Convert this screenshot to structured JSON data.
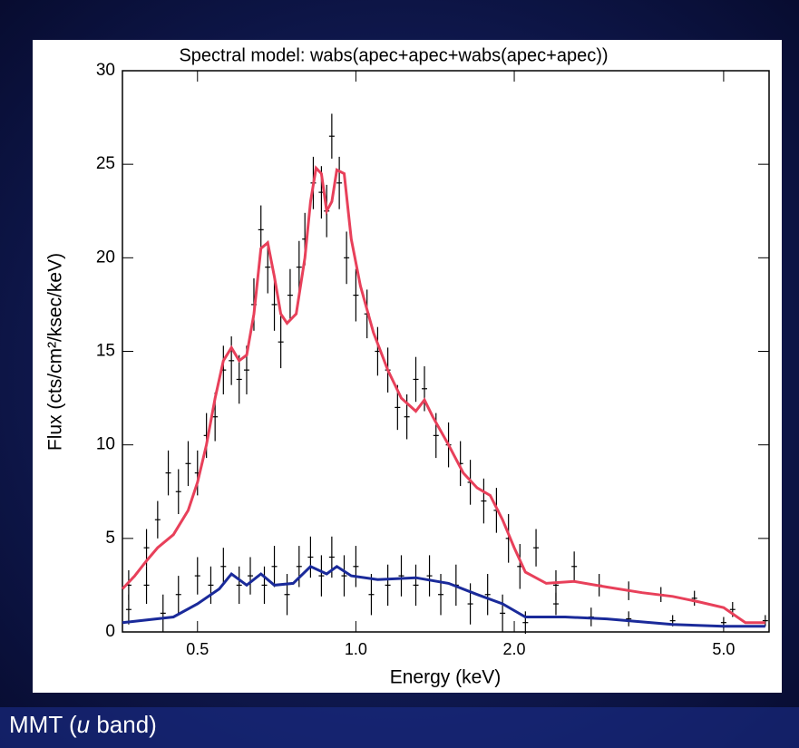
{
  "chart_data": {
    "type": "spectrum",
    "title": "Spectral model: wabs(apec+apec+wabs(apec+apec))",
    "x_label": "Energy (keV)",
    "y_label": "Flux (cts/cm²/ksec/keV)",
    "log_x": true,
    "xlim": [
      0.36,
      6.1
    ],
    "xticks": [
      0.5,
      {
        "value": 1,
        "label": "1.0"
      },
      {
        "value": 2,
        "label": "2.0"
      },
      {
        "value": 5,
        "label": "5.0"
      }
    ],
    "ylim": [
      0,
      30
    ],
    "yticks": [
      0,
      5,
      10,
      15,
      20,
      25,
      30
    ],
    "series": [
      {
        "type": "errorbar",
        "color": "#000000",
        "x": [
          0.37,
          0.4,
          0.42,
          0.44,
          0.46,
          0.48,
          0.5,
          0.52,
          0.54,
          0.56,
          0.58,
          0.6,
          0.62,
          0.64,
          0.66,
          0.68,
          0.7,
          0.72,
          0.75,
          0.78,
          0.8,
          0.83,
          0.86,
          0.88,
          0.9,
          0.93,
          0.96,
          1.0,
          1.05,
          1.1,
          1.15,
          1.2,
          1.25,
          1.3,
          1.35,
          1.42,
          1.5,
          1.58,
          1.65,
          1.75,
          1.85,
          1.95,
          2.05,
          2.2,
          2.4,
          2.6,
          2.9,
          3.3,
          3.8,
          4.4,
          5.2,
          6.0
        ],
        "values": [
          2.5,
          4.5,
          6,
          8.5,
          7.5,
          9,
          8.5,
          10.5,
          11.5,
          14,
          14.5,
          13.5,
          14,
          17.5,
          21.5,
          19.5,
          17.5,
          15.5,
          18,
          19.5,
          21,
          24,
          23.5,
          22.5,
          26.5,
          24,
          20,
          18,
          17,
          15,
          14,
          12,
          11.5,
          13.5,
          13,
          10.5,
          10,
          9,
          8,
          7,
          6.5,
          5,
          3.5,
          4.5,
          2.5,
          3.5,
          2.5,
          2.2,
          2.0,
          1.8,
          1.2,
          0.6
        ],
        "errors": [
          0.8,
          1,
          1,
          1.2,
          1.2,
          1.2,
          1.2,
          1.2,
          1.3,
          1.3,
          1.3,
          1.3,
          1.3,
          1.4,
          1.3,
          1.4,
          1.4,
          1.4,
          1.4,
          1.4,
          1.4,
          1.4,
          1.4,
          1.4,
          1.2,
          1.4,
          1.4,
          1.4,
          1.3,
          1.3,
          1.2,
          1.2,
          1.2,
          1.2,
          1.2,
          1.2,
          1.2,
          1.2,
          1.2,
          1.2,
          1.2,
          1.3,
          1.2,
          1,
          0.8,
          0.8,
          0.6,
          0.5,
          0.4,
          0.4,
          0.4,
          0.3
        ]
      },
      {
        "type": "errorbar",
        "color": "#000000",
        "x": [
          0.37,
          0.4,
          0.43,
          0.46,
          0.5,
          0.53,
          0.56,
          0.6,
          0.63,
          0.67,
          0.7,
          0.74,
          0.78,
          0.82,
          0.86,
          0.9,
          0.95,
          1.0,
          1.07,
          1.15,
          1.22,
          1.3,
          1.38,
          1.45,
          1.55,
          1.65,
          1.78,
          1.9,
          2.1,
          2.4,
          2.8,
          3.3,
          4.0,
          5.0
        ],
        "values": [
          1.2,
          2.5,
          1,
          2,
          3,
          2.5,
          3.5,
          2.5,
          3,
          2.5,
          3.5,
          2,
          3.5,
          4,
          3,
          4,
          3,
          3.5,
          2,
          2.5,
          3,
          2.5,
          3,
          2,
          2.5,
          1.5,
          2,
          1,
          0.5,
          1.5,
          0.8,
          0.7,
          0.6,
          0.5
        ],
        "errors": [
          0.8,
          1,
          1,
          1,
          1,
          1,
          1,
          1,
          1,
          1,
          1.1,
          1.1,
          1.1,
          1.1,
          1.1,
          1.1,
          1.1,
          1.1,
          1.1,
          1.1,
          1.1,
          1.1,
          1.1,
          1.1,
          1.1,
          1.1,
          1.1,
          1,
          0.6,
          0.6,
          0.5,
          0.4,
          0.3,
          0.3
        ]
      },
      {
        "type": "line",
        "color": "#e8405a",
        "x": [
          0.36,
          0.38,
          0.4,
          0.42,
          0.45,
          0.48,
          0.5,
          0.52,
          0.54,
          0.56,
          0.58,
          0.6,
          0.62,
          0.64,
          0.66,
          0.68,
          0.7,
          0.72,
          0.74,
          0.77,
          0.8,
          0.82,
          0.84,
          0.86,
          0.88,
          0.9,
          0.92,
          0.95,
          0.98,
          1.02,
          1.08,
          1.15,
          1.22,
          1.3,
          1.35,
          1.4,
          1.5,
          1.6,
          1.7,
          1.8,
          1.9,
          2.0,
          2.1,
          2.3,
          2.6,
          3.0,
          3.5,
          4.0,
          4.5,
          5.0,
          5.5,
          6.0
        ],
        "values": [
          2.3,
          3,
          3.8,
          4.5,
          5.2,
          6.5,
          8,
          10,
          12.5,
          14.5,
          15.2,
          14.5,
          14.8,
          17,
          20.5,
          20.8,
          19,
          17,
          16.5,
          17,
          20,
          23,
          24.8,
          24.5,
          22.5,
          23,
          24.7,
          24.5,
          21,
          18.5,
          16,
          14,
          12.5,
          11.8,
          12.4,
          11.5,
          10,
          8.5,
          7.7,
          7.3,
          6,
          4.5,
          3.2,
          2.6,
          2.7,
          2.4,
          2.1,
          1.9,
          1.6,
          1.3,
          0.5,
          0.5
        ]
      },
      {
        "type": "line",
        "color": "#1a2a9a",
        "x": [
          0.36,
          0.45,
          0.5,
          0.55,
          0.58,
          0.62,
          0.66,
          0.7,
          0.76,
          0.82,
          0.88,
          0.92,
          0.98,
          1.1,
          1.3,
          1.5,
          1.7,
          1.9,
          2.1,
          2.5,
          3.0,
          4.0,
          5.0,
          6.0
        ],
        "values": [
          0.5,
          0.8,
          1.5,
          2.3,
          3.1,
          2.5,
          3.1,
          2.5,
          2.6,
          3.5,
          3.1,
          3.5,
          3.0,
          2.8,
          2.9,
          2.6,
          2.0,
          1.5,
          0.8,
          0.8,
          0.7,
          0.4,
          0.3,
          0.3
        ]
      }
    ]
  },
  "caption": {
    "prefix": "MMT (",
    "italic": "u",
    "suffix": " band)"
  }
}
